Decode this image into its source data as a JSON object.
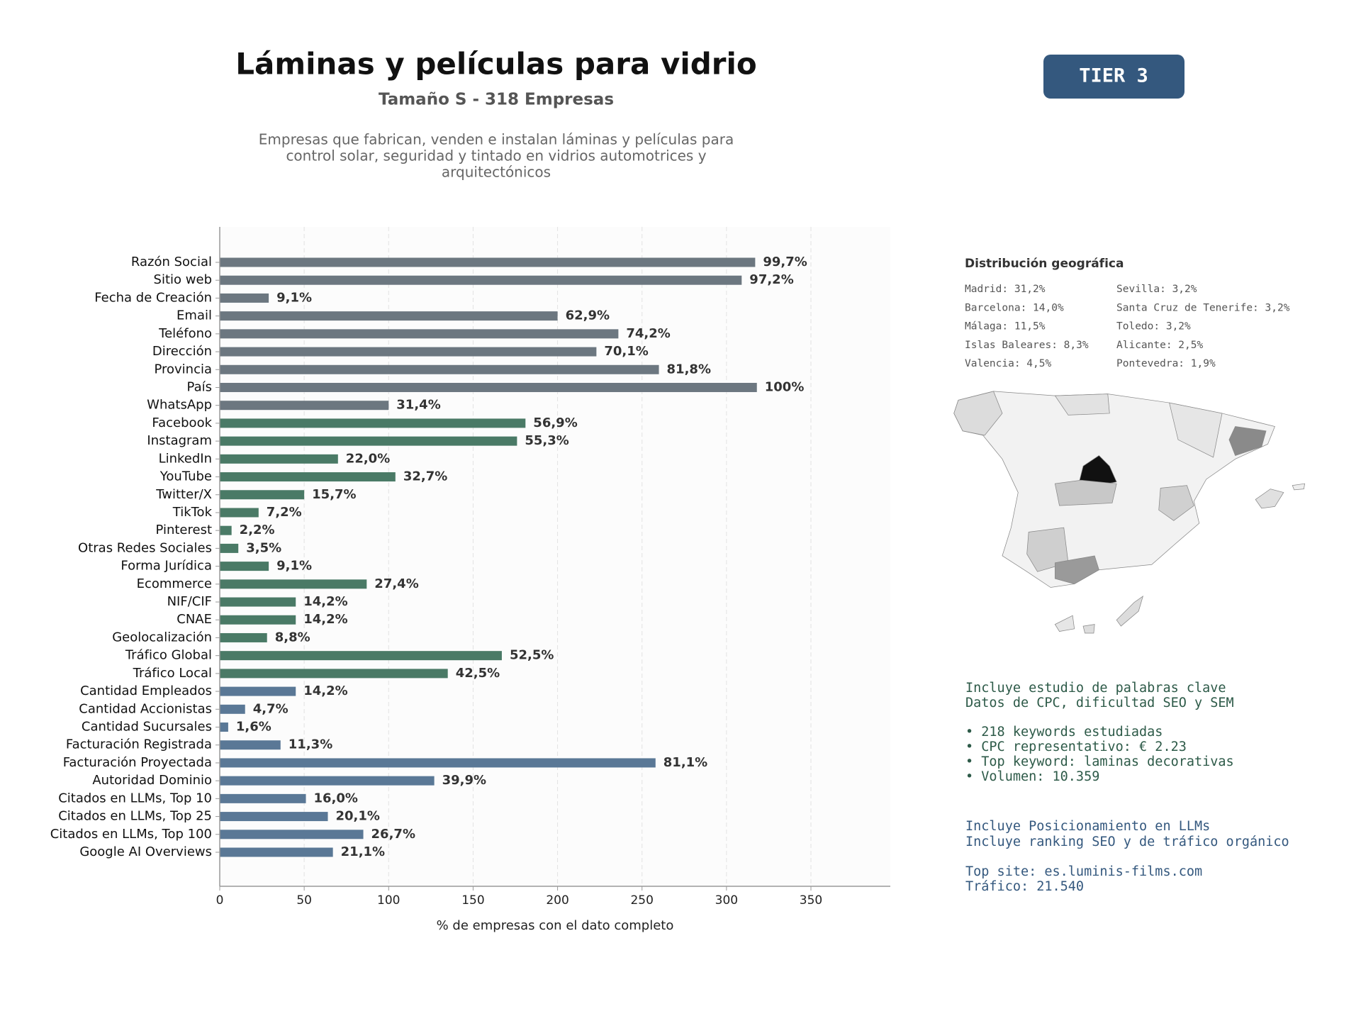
{
  "header": {
    "title": "Láminas y películas para vidrio",
    "subtitle": "Tamaño S - 318 Empresas",
    "description": [
      "Empresas que fabrican, venden e instalan láminas y películas para",
      "control solar, seguridad y tintado en vidrios automotrices y",
      "arquitectónicos"
    ],
    "tier": "TIER 3"
  },
  "chart_data": {
    "type": "barh",
    "xlabel": "% de empresas con el dato completo",
    "categories": [
      "Razón Social",
      "Sitio web",
      "Fecha de Creación",
      "Email",
      "Teléfono",
      "Dirección",
      "Provincia",
      "País",
      "WhatsApp",
      "Facebook",
      "Instagram",
      "LinkedIn",
      "YouTube",
      "Twitter/X",
      "TikTok",
      "Pinterest",
      "Otras Redes Sociales",
      "Forma Jurídica",
      "Ecommerce",
      "NIF/CIF",
      "CNAE",
      "Geolocalización",
      "Tráfico Global",
      "Tráfico Local",
      "Cantidad Empleados",
      "Cantidad Accionistas",
      "Cantidad Sucursales",
      "Facturación Registrada",
      "Facturación Proyectada",
      "Autoridad Dominio",
      "Citados en LLMs, Top 10",
      "Citados en LLMs, Top 25",
      "Citados en LLMs, Top 100",
      "Google AI Overviews"
    ],
    "values": [
      317,
      309,
      29,
      200,
      236,
      223,
      260,
      318,
      100,
      181,
      176,
      70,
      104,
      50,
      23,
      7,
      11,
      29,
      87,
      45,
      45,
      28,
      167,
      135,
      45,
      15,
      5,
      36,
      258,
      127,
      51,
      64,
      85,
      67
    ],
    "value_labels": [
      "99,7%",
      "97,2%",
      "9,1%",
      "62,9%",
      "74,2%",
      "70,1%",
      "81,8%",
      "100%",
      "31,4%",
      "56,9%",
      "55,3%",
      "22,0%",
      "32,7%",
      "15,7%",
      "7,2%",
      "2,2%",
      "3,5%",
      "9,1%",
      "27,4%",
      "14,2%",
      "14,2%",
      "8,8%",
      "52,5%",
      "42,5%",
      "14,2%",
      "4,7%",
      "1,6%",
      "11,3%",
      "81,1%",
      "39,9%",
      "16,0%",
      "20,1%",
      "26,7%",
      "21,1%"
    ],
    "colors": [
      "#6c7780",
      "#6c7780",
      "#6c7780",
      "#6c7780",
      "#6c7780",
      "#6c7780",
      "#6c7780",
      "#6c7780",
      "#6c7780",
      "#4a7a66",
      "#4a7a66",
      "#4a7a66",
      "#4a7a66",
      "#4a7a66",
      "#4a7a66",
      "#4a7a66",
      "#4a7a66",
      "#4a7a66",
      "#4a7a66",
      "#4a7a66",
      "#4a7a66",
      "#4a7a66",
      "#4a7a66",
      "#4a7a66",
      "#5a7896",
      "#5a7896",
      "#5a7896",
      "#5a7896",
      "#5a7896",
      "#5a7896",
      "#5a7896",
      "#5a7896",
      "#5a7896",
      "#5a7896"
    ],
    "xlim": [
      0,
      397
    ],
    "xticks": [
      0,
      50,
      100,
      150,
      200,
      250,
      300,
      350
    ],
    "grid": true
  },
  "geo": {
    "title": "Distribución geográfica",
    "items": [
      "Madrid: 31,2%",
      "Barcelona: 14,0%",
      "Málaga: 11,5%",
      "Islas Baleares: 8,3%",
      "Valencia: 4,5%",
      "Sevilla: 3,2%",
      "Santa Cruz de Tenerife: 3,2%",
      "Toledo: 3,2%",
      "Alicante: 2,5%",
      "Pontevedra: 1,9%"
    ]
  },
  "notes": {
    "keywords": [
      "Incluye estudio de palabras clave",
      "Datos de CPC, dificultad SEO y SEM"
    ],
    "bullets": [
      "• 218 keywords estudiadas",
      "• CPC representativo: € 2.23",
      "• Top keyword: laminas decorativas",
      "• Volumen: 10.359"
    ],
    "llm": [
      "Incluye Posicionamiento en LLMs",
      "Incluye ranking SEO y de tráfico orgánico"
    ],
    "site": [
      "Top site: es.luminis-films.com",
      "Tráfico: 21.540"
    ]
  }
}
